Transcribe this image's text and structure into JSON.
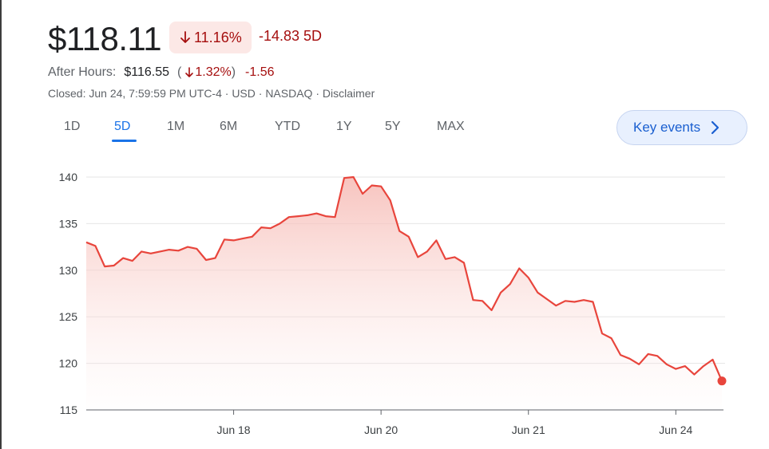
{
  "quote": {
    "price": "$118.11",
    "change_pct": "11.16%",
    "change_abs_period": "-14.83 5D",
    "after_hours_label": "After Hours:",
    "after_hours_price": "$116.55",
    "after_hours_pct": "1.32%",
    "after_hours_abs": "-1.56",
    "paren_open": "(",
    "paren_close": ")",
    "meta": "Closed: Jun 24, 7:59:59 PM UTC-4 · USD · NASDAQ · Disclaimer"
  },
  "ranges": [
    {
      "label": "1D"
    },
    {
      "label": "5D",
      "active": true
    },
    {
      "label": "1M"
    },
    {
      "label": "6M"
    },
    {
      "label": "YTD"
    },
    {
      "label": "1Y"
    },
    {
      "label": "5Y"
    },
    {
      "label": "MAX"
    }
  ],
  "key_events": {
    "label": "Key events"
  },
  "colors": {
    "negative": "#a50e0e",
    "line": "#e8453c",
    "accent": "#1a73e8"
  },
  "icons": {
    "down_arrow": "arrow-down-icon",
    "chevron": "chevron-right-icon"
  },
  "chart_data": {
    "type": "area",
    "ylim": [
      115,
      140
    ],
    "yticks": [
      115,
      120,
      125,
      130,
      135,
      140
    ],
    "x_tick_labels": [
      "Jun 18",
      "Jun 20",
      "Jun 21",
      "Jun 24"
    ],
    "x_tick_index": [
      16,
      32,
      48,
      64
    ],
    "grid": true,
    "series": [
      {
        "values": [
          133.0,
          132.6,
          130.4,
          130.5,
          131.3,
          131.0,
          132.0,
          131.8,
          132.0,
          132.2,
          132.1,
          132.5,
          132.3,
          131.1,
          131.3,
          133.3,
          133.2,
          133.4,
          133.6,
          134.6,
          134.5,
          135.0,
          135.7,
          135.8,
          135.9,
          136.1,
          135.8,
          135.7,
          139.9,
          140.0,
          138.2,
          139.1,
          139.0,
          137.5,
          134.2,
          133.6,
          131.4,
          132.0,
          133.2,
          131.2,
          131.4,
          130.8,
          126.8,
          126.7,
          125.7,
          127.6,
          128.5,
          130.2,
          129.2,
          127.6,
          126.9,
          126.2,
          126.7,
          126.6,
          126.8,
          126.6,
          123.2,
          122.7,
          120.9,
          120.5,
          119.9,
          121.0,
          120.8,
          119.9,
          119.4,
          119.7,
          118.8,
          119.7,
          120.4,
          118.11
        ]
      }
    ]
  }
}
